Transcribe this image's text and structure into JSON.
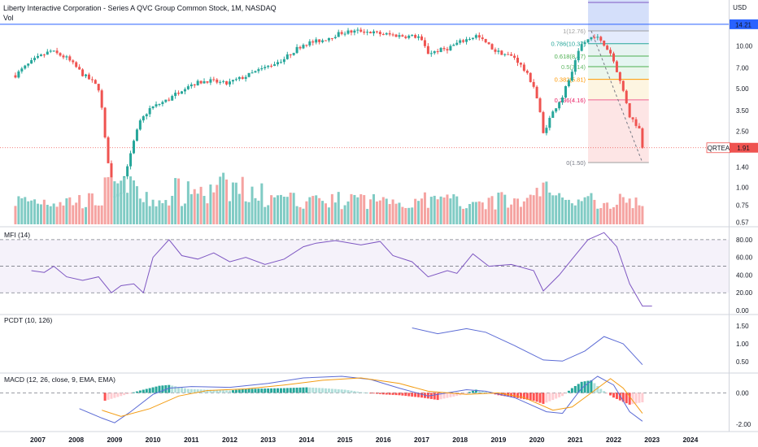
{
  "header": {
    "title": "Liberty Interactive Corporation - Series A QVC Group Common Stock, 1M, NASDAQ",
    "vol_label": "Vol",
    "axis_unit": "USD"
  },
  "colors": {
    "up": "#26a69a",
    "down": "#ef5350",
    "vol_up": "#80cbc4",
    "vol_down": "#f5a3a1",
    "line_blue": "#5b6bd5",
    "line_orange": "#f39c12",
    "hline": "#2962ff",
    "band": "#7e57c2"
  },
  "price_label": {
    "text": "QRTEA",
    "value": "1.91"
  },
  "hline_label": "14.21",
  "chart_data": [
    {
      "type": "candlestick",
      "title": "Liberty Interactive Corporation - Series A QVC Group Common Stock, 1M, NASDAQ",
      "scale": "log",
      "ylim": [
        0.55,
        20
      ],
      "yticks": [
        "10.00",
        "7.00",
        "5.00",
        "3.50",
        "2.50",
        "1.40",
        "1.00",
        "0.75",
        "0.57"
      ],
      "ytick_values": [
        10,
        7,
        5,
        3.5,
        2.5,
        1.4,
        1.0,
        0.75,
        0.57
      ],
      "xticks": [
        "2007",
        "2008",
        "2009",
        "2010",
        "2011",
        "2012",
        "2013",
        "2014",
        "2015",
        "2016",
        "2017",
        "2018",
        "2019",
        "2020",
        "2021",
        "2022",
        "2023",
        "2024"
      ],
      "close_path": [
        [
          "2006-06",
          6.2
        ],
        [
          "2006-12",
          8.0
        ],
        [
          "2007-05",
          9.2
        ],
        [
          "2007-10",
          8.2
        ],
        [
          "2008-03",
          6.3
        ],
        [
          "2008-06",
          5.6
        ],
        [
          "2008-08",
          5.0
        ],
        [
          "2008-10",
          2.2
        ],
        [
          "2008-12",
          0.85
        ],
        [
          "2009-03",
          0.95
        ],
        [
          "2009-06",
          1.7
        ],
        [
          "2009-09",
          2.9
        ],
        [
          "2009-12",
          3.6
        ],
        [
          "2010-06",
          4.2
        ],
        [
          "2010-12",
          5.3
        ],
        [
          "2011-06",
          5.7
        ],
        [
          "2011-12",
          5.4
        ],
        [
          "2012-06",
          6.1
        ],
        [
          "2012-12",
          7.0
        ],
        [
          "2013-06",
          8.1
        ],
        [
          "2013-12",
          10.3
        ],
        [
          "2014-06",
          11.0
        ],
        [
          "2014-12",
          12.4
        ],
        [
          "2015-06",
          12.8
        ],
        [
          "2015-12",
          12.2
        ],
        [
          "2016-06",
          11.8
        ],
        [
          "2016-12",
          11.6
        ],
        [
          "2017-03",
          8.9
        ],
        [
          "2017-09",
          9.6
        ],
        [
          "2017-12",
          10.4
        ],
        [
          "2018-06",
          11.8
        ],
        [
          "2018-12",
          9.2
        ],
        [
          "2019-06",
          8.3
        ],
        [
          "2019-12",
          5.2
        ],
        [
          "2020-03",
          2.4
        ],
        [
          "2020-06",
          3.4
        ],
        [
          "2020-09",
          4.4
        ],
        [
          "2020-12",
          6.4
        ],
        [
          "2021-03",
          10.2
        ],
        [
          "2021-07",
          11.9
        ],
        [
          "2021-12",
          8.9
        ],
        [
          "2022-03",
          5.6
        ],
        [
          "2022-06",
          3.2
        ],
        [
          "2022-09",
          2.6
        ],
        [
          "2022-10",
          1.91
        ]
      ],
      "fibonacci": {
        "levels": [
          {
            "label": "1(12.76)",
            "value": 12.76
          },
          {
            "label": "0.786(10.37)",
            "value": 10.37
          },
          {
            "label": "0.618(8.47)",
            "value": 8.47
          },
          {
            "label": "0.5(7.14)",
            "value": 7.14
          },
          {
            "label": "0.382(5.81)",
            "value": 5.81
          },
          {
            "label": "0.236(4.16)",
            "value": 4.16
          },
          {
            "label": "0(1.50)",
            "value": 1.5
          }
        ]
      },
      "horizontal_line": 14.21,
      "last_price": 1.91
    },
    {
      "type": "bar",
      "title": "Vol",
      "description": "monthly volume bars, colored by candle direction"
    },
    {
      "type": "line",
      "title": "MFI (14)",
      "ylim": [
        0,
        90
      ],
      "yticks": [
        "80.00",
        "60.00",
        "40.00",
        "20.00",
        "0.00"
      ],
      "ytick_values": [
        80,
        60,
        40,
        20,
        0
      ],
      "band": [
        20,
        80
      ],
      "series": [
        {
          "values": [
            [
              "2006-11",
              45
            ],
            [
              "2007-03",
              43
            ],
            [
              "2007-06",
              50
            ],
            [
              "2007-10",
              38
            ],
            [
              "2008-03",
              34
            ],
            [
              "2008-08",
              38
            ],
            [
              "2008-12",
              20
            ],
            [
              "2009-03",
              28
            ],
            [
              "2009-07",
              30
            ],
            [
              "2009-10",
              20
            ],
            [
              "2010-01",
              60
            ],
            [
              "2010-06",
              80
            ],
            [
              "2010-10",
              62
            ],
            [
              "2011-03",
              58
            ],
            [
              "2011-08",
              65
            ],
            [
              "2012-01",
              55
            ],
            [
              "2012-06",
              60
            ],
            [
              "2012-12",
              52
            ],
            [
              "2013-06",
              58
            ],
            [
              "2013-12",
              72
            ],
            [
              "2014-04",
              76
            ],
            [
              "2014-10",
              79
            ],
            [
              "2015-06",
              74
            ],
            [
              "2015-12",
              78
            ],
            [
              "2016-04",
              62
            ],
            [
              "2016-10",
              55
            ],
            [
              "2017-03",
              38
            ],
            [
              "2017-09",
              45
            ],
            [
              "2017-12",
              42
            ],
            [
              "2018-05",
              64
            ],
            [
              "2018-10",
              50
            ],
            [
              "2019-05",
              52
            ],
            [
              "2019-12",
              45
            ],
            [
              "2020-03",
              22
            ],
            [
              "2020-08",
              40
            ],
            [
              "2020-12",
              58
            ],
            [
              "2021-05",
              80
            ],
            [
              "2021-10",
              88
            ],
            [
              "2022-02",
              72
            ],
            [
              "2022-06",
              30
            ],
            [
              "2022-10",
              5
            ],
            [
              "2023-01",
              5
            ]
          ]
        }
      ]
    },
    {
      "type": "line",
      "title": "PCDT (10, 126)",
      "ylim": [
        0.3,
        1.7
      ],
      "yticks": [
        "1.50",
        "1.00",
        "0.50"
      ],
      "ytick_values": [
        1.5,
        1.0,
        0.5
      ],
      "series": [
        {
          "values": [
            [
              "2016-10",
              1.44
            ],
            [
              "2017-06",
              1.28
            ],
            [
              "2018-03",
              1.42
            ],
            [
              "2018-09",
              1.32
            ],
            [
              "2019-06",
              0.95
            ],
            [
              "2020-03",
              0.55
            ],
            [
              "2020-09",
              0.52
            ],
            [
              "2021-04",
              0.8
            ],
            [
              "2021-10",
              1.2
            ],
            [
              "2022-04",
              1.0
            ],
            [
              "2022-10",
              0.42
            ]
          ]
        }
      ]
    },
    {
      "type": "bar",
      "title": "MACD (12, 26, close, 9, EMA, EMA)",
      "ylim": [
        -2.2,
        1.0
      ],
      "yticks": [
        "0.00",
        "-2.00"
      ],
      "ytick_values": [
        0,
        -2
      ],
      "histogram": [
        [
          "2008-10",
          -0.5
        ],
        [
          "2009-03",
          -0.2
        ],
        [
          "2009-09",
          0.15
        ],
        [
          "2010-03",
          0.45
        ],
        [
          "2010-06",
          0.5
        ],
        [
          "2010-12",
          0.25
        ],
        [
          "2011-06",
          0.2
        ],
        [
          "2012-01",
          0.15
        ],
        [
          "2012-06",
          0.25
        ],
        [
          "2013-06",
          0.3
        ],
        [
          "2014-01",
          0.35
        ],
        [
          "2014-06",
          0.3
        ],
        [
          "2015-01",
          0.2
        ],
        [
          "2015-06",
          0.05
        ],
        [
          "2016-01",
          -0.1
        ],
        [
          "2016-06",
          -0.15
        ],
        [
          "2017-01",
          -0.3
        ],
        [
          "2017-06",
          -0.45
        ],
        [
          "2018-01",
          -0.15
        ],
        [
          "2018-06",
          0.2
        ],
        [
          "2019-01",
          -0.15
        ],
        [
          "2019-06",
          -0.3
        ],
        [
          "2019-12",
          -0.5
        ],
        [
          "2020-03",
          -0.7
        ],
        [
          "2020-09",
          -0.2
        ],
        [
          "2020-12",
          0.3
        ],
        [
          "2021-03",
          0.7
        ],
        [
          "2021-06",
          0.8
        ],
        [
          "2021-09",
          0.25
        ],
        [
          "2022-01",
          -0.3
        ],
        [
          "2022-06",
          -0.75
        ],
        [
          "2022-10",
          -0.6
        ]
      ],
      "series": [
        {
          "values": [
            [
              "2008-02",
              -1.0
            ],
            [
              "2008-09",
              -1.6
            ],
            [
              "2009-01",
              -1.9
            ],
            [
              "2009-06",
              -1.2
            ],
            [
              "2010-01",
              -0.1
            ],
            [
              "2010-06",
              0.3
            ],
            [
              "2011-01",
              0.4
            ],
            [
              "2012-01",
              0.35
            ],
            [
              "2013-01",
              0.6
            ],
            [
              "2013-12",
              0.95
            ],
            [
              "2014-12",
              1.05
            ],
            [
              "2015-09",
              0.85
            ],
            [
              "2016-06",
              0.3
            ],
            [
              "2017-03",
              -0.2
            ],
            [
              "2018-03",
              0.2
            ],
            [
              "2018-09",
              0.1
            ],
            [
              "2019-06",
              -0.3
            ],
            [
              "2020-04",
              -1.2
            ],
            [
              "2020-09",
              -1.3
            ],
            [
              "2021-03",
              0.3
            ],
            [
              "2021-08",
              1.05
            ],
            [
              "2022-01",
              0.5
            ],
            [
              "2022-06",
              -1.2
            ],
            [
              "2022-10",
              -1.8
            ]
          ]
        },
        {
          "values": [
            [
              "2008-09",
              -1.1
            ],
            [
              "2009-03",
              -1.5
            ],
            [
              "2009-12",
              -1.0
            ],
            [
              "2010-09",
              -0.2
            ],
            [
              "2011-06",
              0.15
            ],
            [
              "2012-06",
              0.25
            ],
            [
              "2013-06",
              0.5
            ],
            [
              "2014-06",
              0.8
            ],
            [
              "2015-06",
              0.95
            ],
            [
              "2016-06",
              0.6
            ],
            [
              "2017-03",
              0.1
            ],
            [
              "2018-03",
              -0.1
            ],
            [
              "2019-01",
              0.0
            ],
            [
              "2019-09",
              -0.3
            ],
            [
              "2020-06",
              -1.1
            ],
            [
              "2020-12",
              -0.9
            ],
            [
              "2021-06",
              0.0
            ],
            [
              "2021-12",
              0.9
            ],
            [
              "2022-04",
              0.3
            ],
            [
              "2022-10",
              -1.3
            ]
          ]
        }
      ]
    }
  ]
}
